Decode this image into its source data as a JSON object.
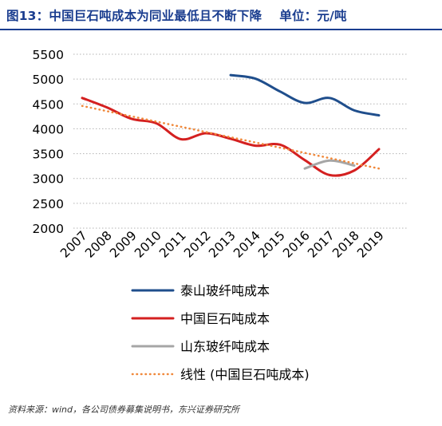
{
  "header": {
    "title": "图13：中国巨石吨成本为同业最低且不断下降",
    "unit": "单位：元/吨"
  },
  "source": "资料来源：wind，各公司债券募集说明书，东兴证券研究所",
  "colors": {
    "title": "#1a3d8f",
    "taishan": "#1f4e8c",
    "jushi": "#d42020",
    "shandong": "#a6a6a6",
    "trend": "#f0883a"
  },
  "chart_data": {
    "type": "line",
    "x": [
      "2007",
      "2008",
      "2009",
      "2010",
      "2011",
      "2012",
      "2013",
      "2014",
      "2015",
      "2016",
      "2017",
      "2018",
      "2019"
    ],
    "ylim": [
      2000,
      5500
    ],
    "yticks": [
      2000,
      2500,
      3000,
      3500,
      4000,
      4500,
      5000,
      5500
    ],
    "grid": true,
    "legend_placement": "bottom",
    "series": [
      {
        "name": "泰山玻纤吨成本",
        "key": "taishan",
        "values": [
          null,
          null,
          null,
          null,
          null,
          null,
          5080,
          5010,
          4750,
          4520,
          4620,
          4370,
          4270
        ]
      },
      {
        "name": "中国巨石吨成本",
        "key": "jushi",
        "values": [
          4620,
          4430,
          4200,
          4110,
          3790,
          3910,
          3800,
          3660,
          3680,
          3370,
          3070,
          3160,
          3590
        ]
      },
      {
        "name": "山东玻纤吨成本",
        "key": "shandong",
        "values": [
          null,
          null,
          null,
          null,
          null,
          null,
          null,
          null,
          null,
          3200,
          3360,
          3260,
          null
        ]
      },
      {
        "name": "线性 (中国巨石吨成本)",
        "key": "trend",
        "dashed": true,
        "values": [
          4460,
          4355,
          4250,
          4145,
          4040,
          3935,
          3830,
          3725,
          3620,
          3515,
          3410,
          3305,
          3200
        ]
      }
    ]
  }
}
